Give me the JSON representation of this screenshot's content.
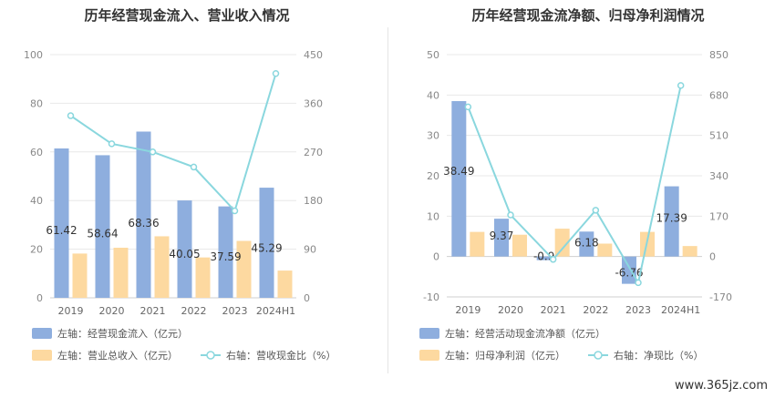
{
  "chart_data": [
    {
      "type": "bar",
      "title": "历年经营现金流入、营业收入情况",
      "categories": [
        "2019",
        "2020",
        "2021",
        "2022",
        "2023",
        "2024H1"
      ],
      "left_axis": {
        "min": 0,
        "max": 100,
        "ticks": [
          "0",
          "20",
          "40",
          "60",
          "80",
          "100"
        ]
      },
      "right_axis": {
        "min": 0,
        "max": 450,
        "ticks": [
          "0",
          "90",
          "180",
          "270",
          "360",
          "450"
        ]
      },
      "series": [
        {
          "name": "左轴：经营现金流入（亿元）",
          "kind": "bar",
          "axis": "left",
          "color": "#8eaede",
          "values": [
            61.42,
            58.64,
            68.36,
            40.05,
            37.59,
            45.29
          ],
          "labels": [
            "61.42",
            "58.64",
            "68.36",
            "40.05",
            "37.59",
            "45.29"
          ]
        },
        {
          "name": "左轴：营业总收入（亿元）",
          "kind": "bar",
          "axis": "left",
          "color": "#fdd9a0",
          "values": [
            18.2,
            20.6,
            25.3,
            16.6,
            23.4,
            11.2
          ]
        },
        {
          "name": "右轴：营收现金比（%）",
          "kind": "line",
          "axis": "right",
          "color": "#8ad7de",
          "values": [
            337,
            285,
            270,
            242,
            161,
            415
          ]
        }
      ],
      "legend": "bottom",
      "grid": true
    },
    {
      "type": "bar",
      "title": "历年经营现金流净额、归母净利润情况",
      "categories": [
        "2019",
        "2020",
        "2021",
        "2022",
        "2023",
        "2024H1"
      ],
      "left_axis": {
        "min": -10,
        "max": 50,
        "ticks": [
          "-10",
          "0",
          "10",
          "20",
          "30",
          "40",
          "50"
        ]
      },
      "right_axis": {
        "min": -170,
        "max": 850,
        "ticks": [
          "-170",
          "0",
          "170",
          "340",
          "510",
          "680",
          "850"
        ]
      },
      "series": [
        {
          "name": "左轴：经营活动现金流净额（亿元）",
          "kind": "bar",
          "axis": "left",
          "color": "#8eaede",
          "values": [
            38.49,
            9.37,
            -0.9,
            6.18,
            -6.76,
            17.39
          ],
          "labels": [
            "38.49",
            "9.37",
            "-0.9",
            "6.18",
            "-6.76",
            "17.39"
          ]
        },
        {
          "name": "左轴：归母净利润（亿元）",
          "kind": "bar",
          "axis": "left",
          "color": "#fdd9a0",
          "values": [
            6.1,
            5.4,
            6.9,
            3.2,
            6.1,
            2.6
          ]
        },
        {
          "name": "右轴：净现比（%）",
          "kind": "line",
          "axis": "right",
          "color": "#8ad7de",
          "values": [
            630,
            175,
            -12,
            195,
            -110,
            720
          ]
        }
      ],
      "legend": "bottom",
      "grid": true
    }
  ],
  "watermark": "www.365jz.com"
}
